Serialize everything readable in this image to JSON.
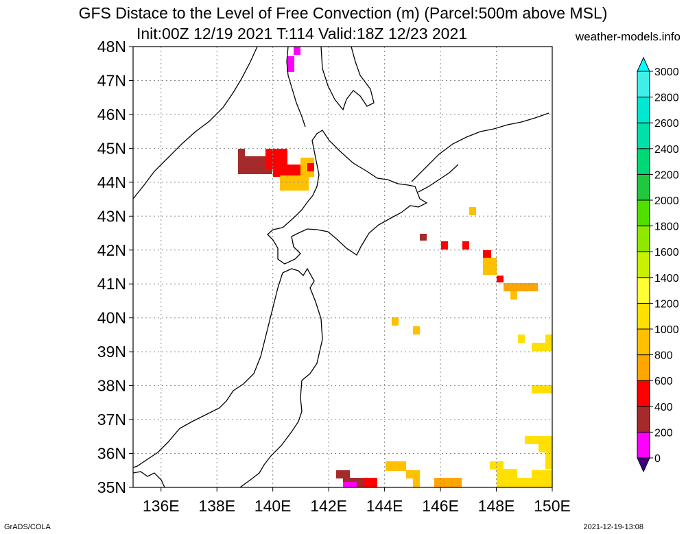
{
  "title": {
    "line1": "GFS Distace to the Level of Free Convection (m) (Parcel:500m above MSL)",
    "line2": "Init:00Z 12/19 2021 T:114 Valid:18Z 12/23 2021"
  },
  "credit": "weather-models.info",
  "footer": {
    "left": "GrADS/COLA",
    "right": "2021-12-19-13:08"
  },
  "map": {
    "lat_range": [
      35,
      48
    ],
    "lon_range": [
      135,
      150
    ],
    "lat_ticks": [
      "35N",
      "36N",
      "37N",
      "38N",
      "39N",
      "40N",
      "41N",
      "42N",
      "43N",
      "44N",
      "45N",
      "46N",
      "47N",
      "48N"
    ],
    "lon_ticks": [
      "136E",
      "138E",
      "140E",
      "142E",
      "144E",
      "146E",
      "148E",
      "150E"
    ],
    "grid": "dotted"
  },
  "colorbar": {
    "levels": [
      "0",
      "200",
      "400",
      "600",
      "800",
      "1000",
      "1200",
      "1400",
      "1600",
      "1800",
      "2000",
      "2200",
      "2400",
      "2600",
      "2800",
      "3000"
    ],
    "colors": [
      "#3f007f",
      "#ff00ff",
      "#a52a2a",
      "#ff0000",
      "#ffa500",
      "#ffc000",
      "#ffe000",
      "#ffff33",
      "#c8f000",
      "#90e800",
      "#50e000",
      "#20c840",
      "#00d878",
      "#00e0a8",
      "#00e8d0",
      "#40f0e8",
      "#00ffff"
    ]
  }
}
